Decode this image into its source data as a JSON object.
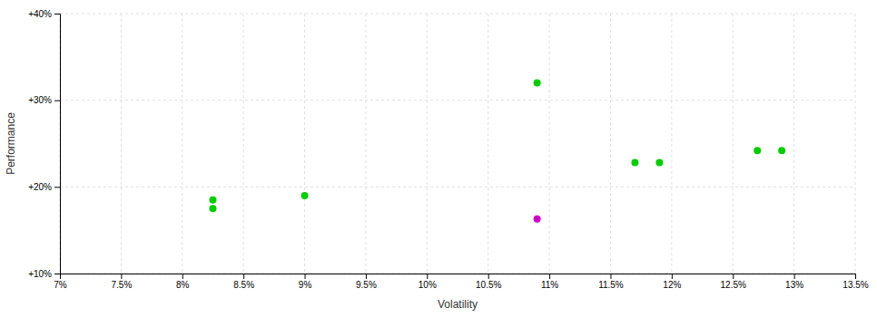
{
  "chart_data": {
    "type": "scatter",
    "xlabel": "Volatility",
    "ylabel": "Performance",
    "xlim": [
      0.07,
      0.135
    ],
    "ylim": [
      0.1,
      0.4
    ],
    "xticks": [
      {
        "value": 0.07,
        "label": "7%"
      },
      {
        "value": 0.075,
        "label": "7.5%"
      },
      {
        "value": 0.08,
        "label": "8%"
      },
      {
        "value": 0.085,
        "label": "8.5%"
      },
      {
        "value": 0.09,
        "label": "9%"
      },
      {
        "value": 0.095,
        "label": "9.5%"
      },
      {
        "value": 0.1,
        "label": "10%"
      },
      {
        "value": 0.105,
        "label": "10.5%"
      },
      {
        "value": 0.11,
        "label": "11%"
      },
      {
        "value": 0.115,
        "label": "11.5%"
      },
      {
        "value": 0.12,
        "label": "12%"
      },
      {
        "value": 0.125,
        "label": "12.5%"
      },
      {
        "value": 0.13,
        "label": "13%"
      },
      {
        "value": 0.135,
        "label": "13.5%"
      }
    ],
    "yticks": [
      {
        "value": 0.1,
        "label": "+10%"
      },
      {
        "value": 0.2,
        "label": "+20%"
      },
      {
        "value": 0.3,
        "label": "+30%"
      },
      {
        "value": 0.4,
        "label": "+40%"
      }
    ],
    "grid": true,
    "series": [
      {
        "color": "#00cc00",
        "x": [
          0.109,
          0.117,
          0.119,
          0.127,
          0.129,
          0.0825,
          0.0825,
          0.09
        ],
        "values": [
          0.32,
          0.228,
          0.228,
          0.242,
          0.242,
          0.185,
          0.175,
          0.19
        ]
      },
      {
        "color": "#cc00cc",
        "x": [
          0.109
        ],
        "values": [
          0.163
        ]
      }
    ]
  }
}
